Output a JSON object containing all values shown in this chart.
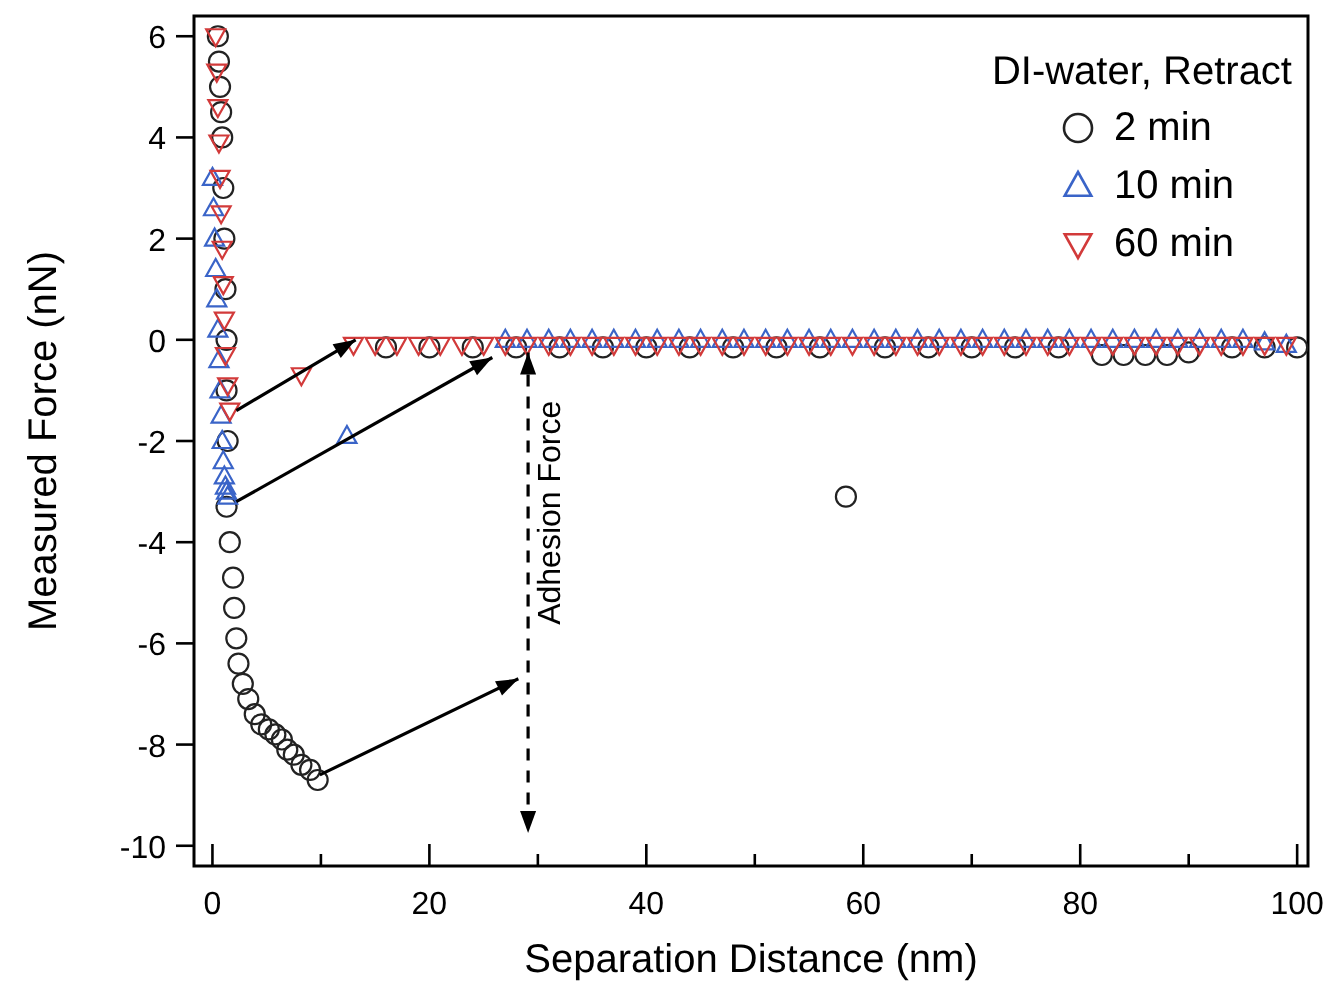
{
  "chart_data": {
    "type": "scatter",
    "xlabel": "Separation Distance (nm)",
    "ylabel": "Measured Force (nN)",
    "legend_title": "DI-water, Retract",
    "legend": "top right",
    "grid": false,
    "xlim": [
      -1.7,
      101
    ],
    "ylim": [
      -10.4,
      6.4
    ],
    "xticks": [
      0,
      {
        "value": 10,
        "label": null
      },
      20,
      {
        "value": 30,
        "label": null
      },
      40,
      {
        "value": 50,
        "label": null
      },
      60,
      {
        "value": 70,
        "label": null
      },
      80,
      {
        "value": 90,
        "label": null
      },
      100
    ],
    "yticks": [
      -10,
      -8,
      -6,
      -4,
      -2,
      0,
      2,
      4,
      6
    ],
    "ref_lines": [
      {
        "axis": "x",
        "value": 29.1,
        "label": "Adhesion Force",
        "color": "#000000",
        "line_style": "dashed"
      }
    ],
    "series": [
      {
        "name": "2 min",
        "color": "#222222",
        "marker": "circle",
        "x": [
          0.5,
          0.6,
          0.7,
          0.8,
          0.9,
          1.0,
          1.1,
          1.2,
          1.3,
          1.3,
          1.4,
          1.3,
          1.6,
          1.9,
          2.0,
          2.2,
          2.4,
          2.8,
          3.3,
          3.9,
          4.5,
          5.2,
          5.8,
          6.4,
          6.9,
          7.5,
          8.2,
          9.0,
          9.7,
          16,
          20,
          24,
          28,
          32,
          36,
          40,
          44,
          48,
          52,
          56,
          58.4,
          62,
          66,
          70,
          74,
          78,
          82,
          84,
          86,
          88,
          90,
          94,
          97,
          100
        ],
        "values": [
          6.0,
          5.5,
          5.0,
          4.5,
          4.0,
          3.0,
          2.0,
          1.0,
          0.0,
          -1.0,
          -2.0,
          -3.3,
          -4.0,
          -4.7,
          -5.3,
          -5.9,
          -6.4,
          -6.8,
          -7.1,
          -7.4,
          -7.6,
          -7.7,
          -7.8,
          -7.9,
          -8.1,
          -8.2,
          -8.4,
          -8.5,
          -8.7,
          -0.15,
          -0.15,
          -0.15,
          -0.15,
          -0.15,
          -0.15,
          -0.15,
          -0.15,
          -0.15,
          -0.15,
          -0.15,
          -3.1,
          -0.15,
          -0.15,
          -0.15,
          -0.15,
          -0.15,
          -0.3,
          -0.3,
          -0.3,
          -0.3,
          -0.25,
          -0.15,
          -0.15,
          -0.15
        ]
      },
      {
        "name": "10 min",
        "color": "#3a64c8",
        "marker": "triangle",
        "x": [
          0.0,
          0.1,
          0.2,
          0.3,
          0.4,
          0.5,
          0.6,
          0.7,
          0.8,
          0.9,
          1.0,
          1.1,
          1.2,
          1.3,
          1.4,
          12.4,
          27,
          29,
          31,
          33,
          35,
          37,
          39,
          41,
          43,
          45,
          47,
          49,
          51,
          53,
          55,
          57,
          59,
          61,
          63,
          65,
          67,
          69,
          71,
          73,
          75,
          77,
          79,
          81,
          83,
          85,
          87,
          89,
          91,
          93,
          95,
          97,
          99
        ],
        "values": [
          3.2,
          2.6,
          2.0,
          1.4,
          0.8,
          0.2,
          -0.4,
          -1.0,
          -1.5,
          -2.0,
          -2.4,
          -2.7,
          -2.9,
          -3.0,
          -3.1,
          -1.9,
          0.0,
          0.0,
          0.0,
          0.0,
          0.0,
          0.0,
          0.0,
          0.0,
          0.0,
          0.0,
          0.0,
          0.0,
          0.0,
          0.0,
          0.0,
          0.0,
          0.0,
          0.0,
          0.0,
          0.0,
          0.0,
          0.0,
          0.0,
          0.0,
          0.0,
          0.0,
          0.0,
          0.0,
          0.0,
          0.0,
          0.0,
          0.0,
          0.0,
          0.0,
          0.0,
          -0.05,
          -0.1
        ]
      },
      {
        "name": "60 min",
        "color": "#d23a3a",
        "marker": "triangle-down",
        "x": [
          0.3,
          0.4,
          0.5,
          0.6,
          0.7,
          0.8,
          0.9,
          1.0,
          1.1,
          1.2,
          1.4,
          1.6,
          8.2,
          13,
          15,
          17,
          19,
          21,
          23,
          25,
          27,
          29,
          31,
          33,
          35,
          37,
          39,
          41,
          43,
          45,
          47,
          49,
          51,
          53,
          55,
          57,
          59,
          61,
          63,
          65,
          67,
          69,
          71,
          73,
          75,
          77,
          79,
          81,
          83,
          85,
          87,
          89,
          91,
          93,
          95,
          97,
          99
        ],
        "values": [
          6.0,
          5.3,
          4.6,
          3.9,
          3.2,
          2.5,
          1.8,
          1.1,
          0.4,
          -0.3,
          -0.9,
          -1.4,
          -0.7,
          -0.1,
          -0.1,
          -0.1,
          -0.1,
          -0.1,
          -0.1,
          -0.1,
          -0.1,
          -0.1,
          -0.1,
          -0.1,
          -0.1,
          -0.1,
          -0.1,
          -0.1,
          -0.1,
          -0.1,
          -0.1,
          -0.1,
          -0.1,
          -0.1,
          -0.1,
          -0.1,
          -0.1,
          -0.1,
          -0.1,
          -0.1,
          -0.1,
          -0.1,
          -0.1,
          -0.1,
          -0.1,
          -0.1,
          -0.1,
          -0.1,
          -0.1,
          -0.1,
          -0.1,
          -0.1,
          -0.1,
          -0.1,
          -0.1,
          -0.1,
          -0.1
        ]
      }
    ]
  }
}
